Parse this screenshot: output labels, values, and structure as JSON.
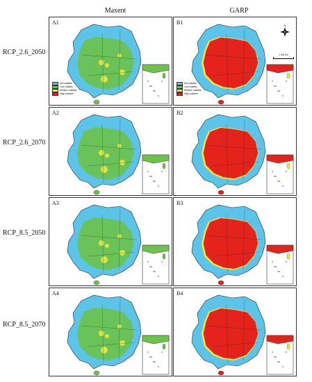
{
  "columns": [
    {
      "label": "Maxent"
    },
    {
      "label": "GARP"
    }
  ],
  "rows": [
    {
      "label": "RCP_2.6_2050"
    },
    {
      "label": "RCP_2.6_2070"
    },
    {
      "label": "RCP_8.5_2050"
    },
    {
      "label": "RCP_8.5_2070"
    }
  ],
  "panels": {
    "A1": "A1",
    "B1": "B1",
    "A2": "A2",
    "B2": "B2",
    "A3": "A3",
    "B3": "B3",
    "A4": "A4",
    "B4": "B4"
  },
  "legend": {
    "not_suitable": "Not suitable",
    "low_suitable": "Low suitable",
    "medium_suitable": "Medium suitable",
    "high_suitable": "High suitable"
  },
  "scale_label": "1 000 Km",
  "compass_label": "N",
  "colors": {
    "not_suitable": "#5bc4e8",
    "low_suitable": "#6cc24a",
    "medium_suitable": "#f2e93a",
    "high_suitable": "#e4231c",
    "boundary": "#222222"
  }
}
